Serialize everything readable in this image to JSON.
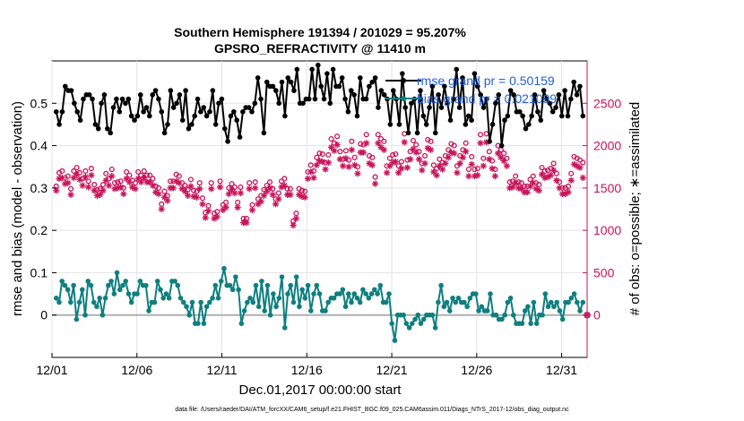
{
  "chart_data": {
    "type": "line",
    "title": "Southern Hemisphere 191394 / 201029 = 95.207%",
    "subtitle": "GPSRO_REFRACTIVITY @ 11410 m",
    "xlabel": "Dec.01,2017 00:00:00 start",
    "ylabel_left": "rmse and bias (model - observation)",
    "ylabel_right": "# of obs: o=possible; ∗=assimilated",
    "footnote": "data file: /Users/raeder/DAI/ATM_forcXX/CAM6_setup/f.e21.FHIST_BGC.f09_025.CAM6assim.011/Diags_NTrS_2017-12/obs_diag_output.nc",
    "x_range_days": [
      0,
      31.5
    ],
    "x_ticks": [
      {
        "day": 0,
        "label": "12/01"
      },
      {
        "day": 5,
        "label": "12/06"
      },
      {
        "day": 10,
        "label": "12/11"
      },
      {
        "day": 15,
        "label": "12/16"
      },
      {
        "day": 20,
        "label": "12/21"
      },
      {
        "day": 25,
        "label": "12/26"
      },
      {
        "day": 30,
        "label": "12/31"
      }
    ],
    "ylim_left": [
      -0.1,
      0.6
    ],
    "left_ticks": [
      "0",
      "0.1",
      "0.2",
      "0.3",
      "0.4",
      "0.5"
    ],
    "left_tick_values": [
      0,
      0.1,
      0.2,
      0.3,
      0.4,
      0.5
    ],
    "ylim_right": [
      -500,
      3000
    ],
    "right_ticks": [
      "0",
      "500",
      "1000",
      "1500",
      "2000",
      "2500"
    ],
    "right_tick_values": [
      0,
      500,
      1000,
      1500,
      2000,
      2500
    ],
    "legend": [
      {
        "label": "rmse grand pr = 0.50159",
        "color": "#000000"
      },
      {
        "label": "bias grand pr = 0.021099",
        "color": "#0f7f7f"
      }
    ],
    "colors": {
      "rmse": "#000000",
      "bias": "#0f7f7f",
      "obs": "#c8145a",
      "legend_text": "#1f5fd8",
      "zero_line": "#b0b0b0"
    },
    "series": [
      {
        "name": "rmse",
        "axis": "left",
        "values": [
          0.48,
          0.45,
          0.48,
          0.54,
          0.53,
          0.53,
          0.5,
          0.48,
          0.46,
          0.51,
          0.52,
          0.52,
          0.51,
          0.45,
          0.44,
          0.5,
          0.52,
          0.44,
          0.43,
          0.49,
          0.51,
          0.48,
          0.51,
          0.5,
          0.51,
          0.47,
          0.46,
          0.47,
          0.52,
          0.48,
          0.49,
          0.47,
          0.52,
          0.53,
          0.51,
          0.48,
          0.43,
          0.45,
          0.53,
          0.49,
          0.5,
          0.52,
          0.46,
          0.53,
          0.44,
          0.45,
          0.47,
          0.51,
          0.48,
          0.49,
          0.47,
          0.48,
          0.53,
          0.45,
          0.5,
          0.51,
          0.44,
          0.41,
          0.47,
          0.48,
          0.46,
          0.42,
          0.48,
          0.49,
          0.49,
          0.48,
          0.5,
          0.56,
          0.51,
          0.43,
          0.55,
          0.54,
          0.54,
          0.53,
          0.5,
          0.55,
          0.47,
          0.56,
          0.55,
          0.53,
          0.58,
          0.5,
          0.5,
          0.51,
          0.51,
          0.58,
          0.51,
          0.59,
          0.54,
          0.51,
          0.57,
          0.5,
          0.58,
          0.54,
          0.54,
          0.56,
          0.51,
          0.48,
          0.53,
          0.52,
          0.47,
          0.56,
          0.51,
          0.51,
          0.54,
          0.55,
          0.56,
          0.49,
          0.53,
          0.52,
          0.51,
          0.45,
          0.53,
          0.51,
          0.45,
          0.57,
          0.49,
          0.43,
          0.5,
          0.51,
          0.43,
          0.53,
          0.47,
          0.45,
          0.49,
          0.54,
          0.43,
          0.52,
          0.49,
          0.54,
          0.5,
          0.46,
          0.51,
          0.58,
          0.49,
          0.56,
          0.45,
          0.47,
          0.46,
          0.57,
          0.54,
          0.52,
          0.49,
          0.51,
          0.41,
          0.45,
          0.5,
          0.52,
          0.4,
          0.46,
          0.47,
          0.53,
          0.52,
          0.48,
          0.48,
          0.47,
          0.44,
          0.45,
          0.47,
          0.52,
          0.48,
          0.46,
          0.53,
          0.51,
          0.5,
          0.48,
          0.49,
          0.52,
          0.47,
          0.53,
          0.47,
          0.51,
          0.55,
          0.52,
          0.54,
          0.47
        ]
      },
      {
        "name": "bias",
        "axis": "left",
        "values": [
          0.04,
          0.03,
          0.08,
          0.07,
          0.06,
          0.03,
          0.07,
          -0.01,
          0.03,
          0.06,
          0.0,
          0.08,
          0.07,
          0.03,
          0.02,
          0.04,
          -0.0,
          0.04,
          0.07,
          0.08,
          0.05,
          0.1,
          0.06,
          0.07,
          0.08,
          0.05,
          0.03,
          0.05,
          0.05,
          0.08,
          0.07,
          0.07,
          0.01,
          0.03,
          0.03,
          0.08,
          0.06,
          0.04,
          0.05,
          0.04,
          0.08,
          0.08,
          0.07,
          0.04,
          0.03,
          0.02,
          0.0,
          0.03,
          -0.02,
          -0.02,
          0.03,
          -0.02,
          0.02,
          0.03,
          0.04,
          0.07,
          0.04,
          0.08,
          0.11,
          0.07,
          0.07,
          0.06,
          0.09,
          0.06,
          -0.02,
          0.01,
          0.03,
          0.04,
          0.03,
          0.07,
          0.02,
          0.08,
          0.01,
          0.07,
          0.0,
          0.05,
          0.02,
          0.04,
          0.09,
          -0.03,
          0.05,
          0.07,
          0.03,
          0.09,
          0.02,
          0.06,
          0.04,
          0.07,
          0.01,
          0.05,
          0.07,
          0.05,
          0.01,
          0.01,
          0.03,
          0.04,
          0.04,
          0.05,
          0.05,
          0.06,
          0.02,
          0.05,
          0.03,
          0.05,
          0.04,
          0.03,
          0.06,
          0.05,
          0.04,
          0.05,
          0.06,
          0.05,
          0.07,
          0.03,
          0.03,
          0.05,
          -0.02,
          -0.06,
          0.0,
          0.0,
          0.0,
          -0.02,
          -0.03,
          -0.02,
          -0.01,
          0.0,
          -0.02,
          -0.01,
          0.0,
          0.0,
          0.0,
          -0.03,
          0.03,
          0.07,
          0.02,
          0.03,
          0.01,
          0.04,
          0.03,
          0.04,
          0.03,
          0.03,
          0.02,
          0.04,
          0.05,
          0.05,
          0.01,
          0.02,
          0.01,
          0.01,
          0.05,
          0.0,
          0.0,
          -0.01,
          -0.01,
          0.0,
          0.03,
          0.04,
          -0.0,
          -0.02,
          -0.02,
          -0.02,
          0.01,
          0.02,
          -0.02,
          0.03,
          -0.02,
          0.0,
          0.0,
          0.05,
          0.02,
          0.03,
          0.02,
          0.03,
          0.01,
          -0.01,
          0.03,
          0.03,
          0.04,
          0.05,
          0.03,
          0.01,
          0.03
        ]
      },
      {
        "name": "obs possible",
        "axis": "right",
        "values": [
          1520,
          1680,
          1700,
          1620,
          1640,
          1490,
          1700,
          1740,
          1680,
          1610,
          1700,
          1580,
          1730,
          1540,
          1480,
          1490,
          1540,
          1670,
          1610,
          1720,
          1560,
          1570,
          1580,
          1500,
          1690,
          1650,
          1590,
          1560,
          1690,
          1650,
          1700,
          1650,
          1650,
          1610,
          1520,
          1500,
          1310,
          1460,
          1410,
          1580,
          1580,
          1660,
          1640,
          1560,
          1530,
          1480,
          1600,
          1470,
          1460,
          1560,
          1380,
          1210,
          1290,
          1560,
          1200,
          1220,
          1580,
          1300,
          1330,
          1500,
          1550,
          1510,
          1330,
          1510,
          1140,
          1140,
          1560,
          1300,
          1570,
          1370,
          1410,
          1480,
          1530,
          1570,
          1490,
          1370,
          1440,
          1580,
          1610,
          1490,
          1490,
          1110,
          1200,
          1490,
          1470,
          1460,
          1690,
          1770,
          1700,
          1860,
          1910,
          1900,
          1800,
          1890,
          2080,
          2030,
          2110,
          1930,
          1840,
          1940,
          1830,
          2050,
          1860,
          1750,
          2020,
          2010,
          2130,
          1880,
          1860,
          1630,
          2130,
          2080,
          2050,
          1760,
          1850,
          1890,
          1900,
          1760,
          1810,
          2140,
          1830,
          1930,
          2060,
          2010,
          1930,
          1790,
          1880,
          2070,
          2050,
          1770,
          1730,
          1840,
          1800,
          1880,
          1950,
          2020,
          2000,
          1760,
          1880,
          1950,
          2030,
          1720,
          1870,
          1720,
          1730,
          2130,
          1850,
          2140,
          1930,
          1820,
          1720,
          2000,
          1950,
          1910,
          1850,
          1570,
          1580,
          1640,
          1570,
          1560,
          1520,
          1520,
          1600,
          1640,
          1560,
          1540,
          1740,
          1700,
          1710,
          1730,
          1790,
          1670,
          1570,
          1500,
          1500,
          1520,
          1670,
          1870,
          1850,
          1830,
          1800
        ]
      },
      {
        "name": "obs assimilated",
        "axis": "right",
        "values": [
          1470,
          1610,
          1620,
          1550,
          1560,
          1420,
          1620,
          1660,
          1600,
          1530,
          1630,
          1510,
          1650,
          1470,
          1410,
          1420,
          1470,
          1590,
          1530,
          1640,
          1490,
          1500,
          1510,
          1430,
          1610,
          1570,
          1510,
          1490,
          1610,
          1570,
          1620,
          1570,
          1570,
          1530,
          1450,
          1430,
          1250,
          1390,
          1350,
          1500,
          1500,
          1580,
          1560,
          1490,
          1460,
          1410,
          1520,
          1400,
          1390,
          1490,
          1310,
          1150,
          1230,
          1490,
          1140,
          1160,
          1510,
          1240,
          1270,
          1430,
          1480,
          1440,
          1270,
          1440,
          1090,
          1090,
          1490,
          1240,
          1500,
          1310,
          1340,
          1410,
          1460,
          1500,
          1420,
          1310,
          1370,
          1510,
          1530,
          1420,
          1420,
          1060,
          1140,
          1420,
          1400,
          1390,
          1610,
          1690,
          1620,
          1770,
          1820,
          1810,
          1720,
          1800,
          1980,
          1940,
          2010,
          1840,
          1760,
          1850,
          1750,
          1950,
          1770,
          1670,
          1920,
          1920,
          2030,
          1790,
          1770,
          1550,
          2030,
          1980,
          1950,
          1680,
          1760,
          1800,
          1810,
          1680,
          1730,
          2040,
          1740,
          1840,
          1960,
          1920,
          1840,
          1710,
          1790,
          1970,
          1950,
          1690,
          1650,
          1760,
          1720,
          1790,
          1860,
          1920,
          1910,
          1680,
          1790,
          1860,
          1930,
          1640,
          1780,
          1640,
          1650,
          2030,
          1760,
          2040,
          1840,
          1730,
          1640,
          1910,
          1860,
          1820,
          1760,
          1500,
          1510,
          1560,
          1500,
          1490,
          1450,
          1450,
          1520,
          1560,
          1490,
          1470,
          1660,
          1620,
          1630,
          1650,
          1710,
          1590,
          1500,
          1430,
          1430,
          1450,
          1590,
          1780,
          1760,
          1740,
          1620
        ]
      }
    ]
  }
}
